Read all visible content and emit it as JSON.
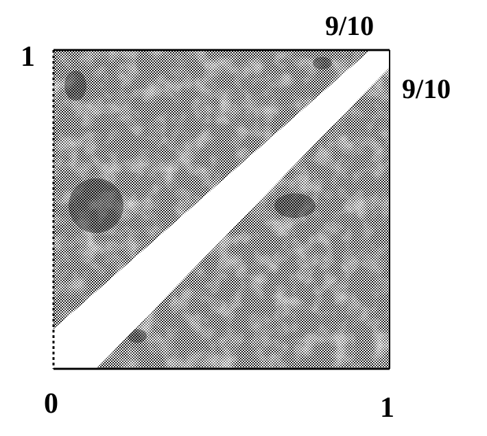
{
  "labels": {
    "origin": "0",
    "x_end": "1",
    "y_end": "1",
    "top_mark": "9/10",
    "right_mark": "9/10"
  },
  "colors": {
    "shading_dark": "#1a1a1a",
    "shading_light": "#ffffff",
    "frame": "#000000",
    "band": "#ffffff"
  }
}
